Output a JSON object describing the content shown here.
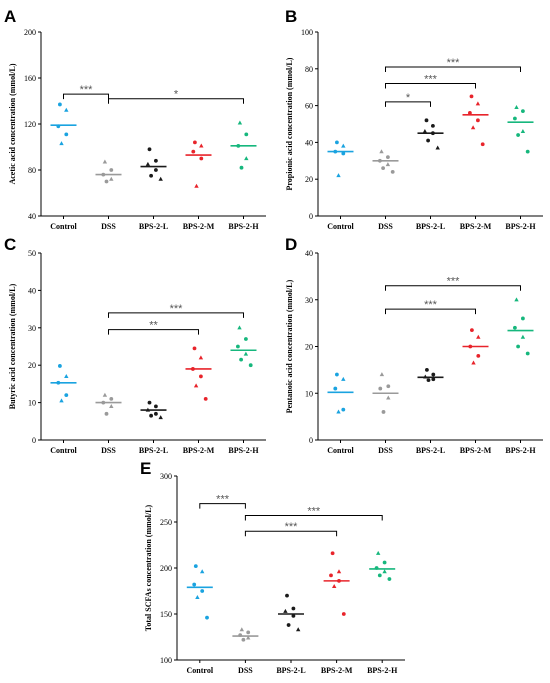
{
  "chart_data": [
    {
      "panel": "A",
      "type": "scatter",
      "ylabel": "Acetic acid concentration (mmol/L)",
      "ylim": [
        40,
        200
      ],
      "yticks": [
        40,
        80,
        120,
        160,
        200
      ],
      "categories": [
        "Control",
        "DSS",
        "BPS-2-L",
        "BPS-2-M",
        "BPS-2-H"
      ],
      "colors": [
        "#1aa3e0",
        "#9a9a9a",
        "#1a1a1a",
        "#e8242b",
        "#16b77d"
      ],
      "points": [
        [
          137,
          132,
          118,
          111,
          103
        ],
        [
          87,
          80,
          76,
          72,
          70
        ],
        [
          98,
          88,
          85,
          80,
          75,
          72
        ],
        [
          104,
          101,
          96,
          90,
          66
        ],
        [
          121,
          111,
          101,
          90,
          82
        ]
      ],
      "means": [
        119,
        76,
        83,
        93,
        101
      ],
      "significance": [
        {
          "from": 0,
          "to": 1,
          "label": "***",
          "y": 146
        },
        {
          "from": 1,
          "to": 4,
          "label": "*",
          "y": 142
        }
      ]
    },
    {
      "panel": "B",
      "type": "scatter",
      "ylabel": "Propionic acid concentration (mmol/L)",
      "ylim": [
        0,
        100
      ],
      "yticks": [
        0,
        20,
        40,
        60,
        80,
        100
      ],
      "categories": [
        "Control",
        "DSS",
        "BPS-2-L",
        "BPS-2-M",
        "BPS-2-H"
      ],
      "colors": [
        "#1aa3e0",
        "#9a9a9a",
        "#1a1a1a",
        "#e8242b",
        "#16b77d"
      ],
      "points": [
        [
          40,
          38,
          35,
          34,
          22
        ],
        [
          35,
          32,
          30,
          28,
          26,
          24
        ],
        [
          52,
          49,
          46,
          45,
          41,
          37
        ],
        [
          65,
          61,
          56,
          52,
          48,
          39
        ],
        [
          59,
          57,
          53,
          46,
          44,
          35
        ]
      ],
      "means": [
        35,
        30,
        45,
        55,
        51
      ],
      "significance": [
        {
          "from": 1,
          "to": 2,
          "label": "*",
          "y": 62
        },
        {
          "from": 1,
          "to": 3,
          "label": "***",
          "y": 72
        },
        {
          "from": 1,
          "to": 4,
          "label": "***",
          "y": 81
        }
      ]
    },
    {
      "panel": "C",
      "type": "scatter",
      "ylabel": "Butyric acid concentration (mmol/L)",
      "ylim": [
        0,
        50
      ],
      "yticks": [
        0,
        10,
        20,
        30,
        40,
        50
      ],
      "categories": [
        "Control",
        "DSS",
        "BPS-2-L",
        "BPS-2-M",
        "BPS-2-H"
      ],
      "colors": [
        "#1aa3e0",
        "#9a9a9a",
        "#1a1a1a",
        "#e8242b",
        "#16b77d"
      ],
      "points": [
        [
          19.8,
          17,
          15.3,
          12,
          10.5
        ],
        [
          12,
          11,
          10,
          9,
          7
        ],
        [
          10,
          9,
          8,
          7,
          6.5,
          6
        ],
        [
          24.5,
          22,
          19,
          17,
          14.5,
          11
        ],
        [
          30,
          27,
          25,
          23,
          21.5,
          20
        ]
      ],
      "means": [
        15.3,
        10,
        8,
        19,
        24
      ],
      "significance": [
        {
          "from": 1,
          "to": 3,
          "label": "**",
          "y": 29.5
        },
        {
          "from": 1,
          "to": 4,
          "label": "***",
          "y": 34
        }
      ]
    },
    {
      "panel": "D",
      "type": "scatter",
      "ylabel": "Pentanoic acid concentration (mmol/L)",
      "ylim": [
        0,
        40
      ],
      "yticks": [
        0,
        10,
        20,
        30,
        40
      ],
      "categories": [
        "Control",
        "DSS",
        "BPS-2-L",
        "BPS-2-M",
        "BPS-2-H"
      ],
      "colors": [
        "#1aa3e0",
        "#9a9a9a",
        "#1a1a1a",
        "#e8242b",
        "#16b77d"
      ],
      "points": [
        [
          14,
          13,
          11,
          6.5,
          6
        ],
        [
          14,
          11.5,
          11,
          9,
          6
        ],
        [
          15,
          14,
          13.5,
          13,
          12.8
        ],
        [
          23.5,
          22,
          20,
          18,
          16.5
        ],
        [
          30,
          26,
          24,
          22,
          20,
          18.5
        ]
      ],
      "means": [
        10.2,
        10,
        13.4,
        20,
        23.4
      ],
      "significance": [
        {
          "from": 1,
          "to": 3,
          "label": "***",
          "y": 28
        },
        {
          "from": 1,
          "to": 4,
          "label": "***",
          "y": 33
        }
      ]
    },
    {
      "panel": "E",
      "type": "scatter",
      "ylabel": "Total SCFAs concentration (mmol/L)",
      "ylim": [
        100,
        300
      ],
      "yticks": [
        100,
        150,
        200,
        250,
        300
      ],
      "categories": [
        "Control",
        "DSS",
        "BPS-2-L",
        "BPS-2-M",
        "BPS-2-H"
      ],
      "colors": [
        "#1aa3e0",
        "#9a9a9a",
        "#1a1a1a",
        "#e8242b",
        "#16b77d"
      ],
      "points": [
        [
          202,
          196,
          182,
          175,
          168,
          146
        ],
        [
          133,
          130,
          127,
          124,
          122
        ],
        [
          170,
          156,
          153,
          148,
          138,
          133
        ],
        [
          216,
          196,
          192,
          186,
          180,
          150
        ],
        [
          216,
          206,
          200,
          196,
          192,
          188
        ]
      ],
      "means": [
        179,
        126,
        150,
        186,
        199
      ],
      "significance": [
        {
          "from": 0,
          "to": 1,
          "label": "***",
          "y": 270
        },
        {
          "from": 1,
          "to": 4,
          "label": "***",
          "y": 257
        },
        {
          "from": 1,
          "to": 3,
          "label": "***",
          "y": 240
        }
      ]
    }
  ]
}
